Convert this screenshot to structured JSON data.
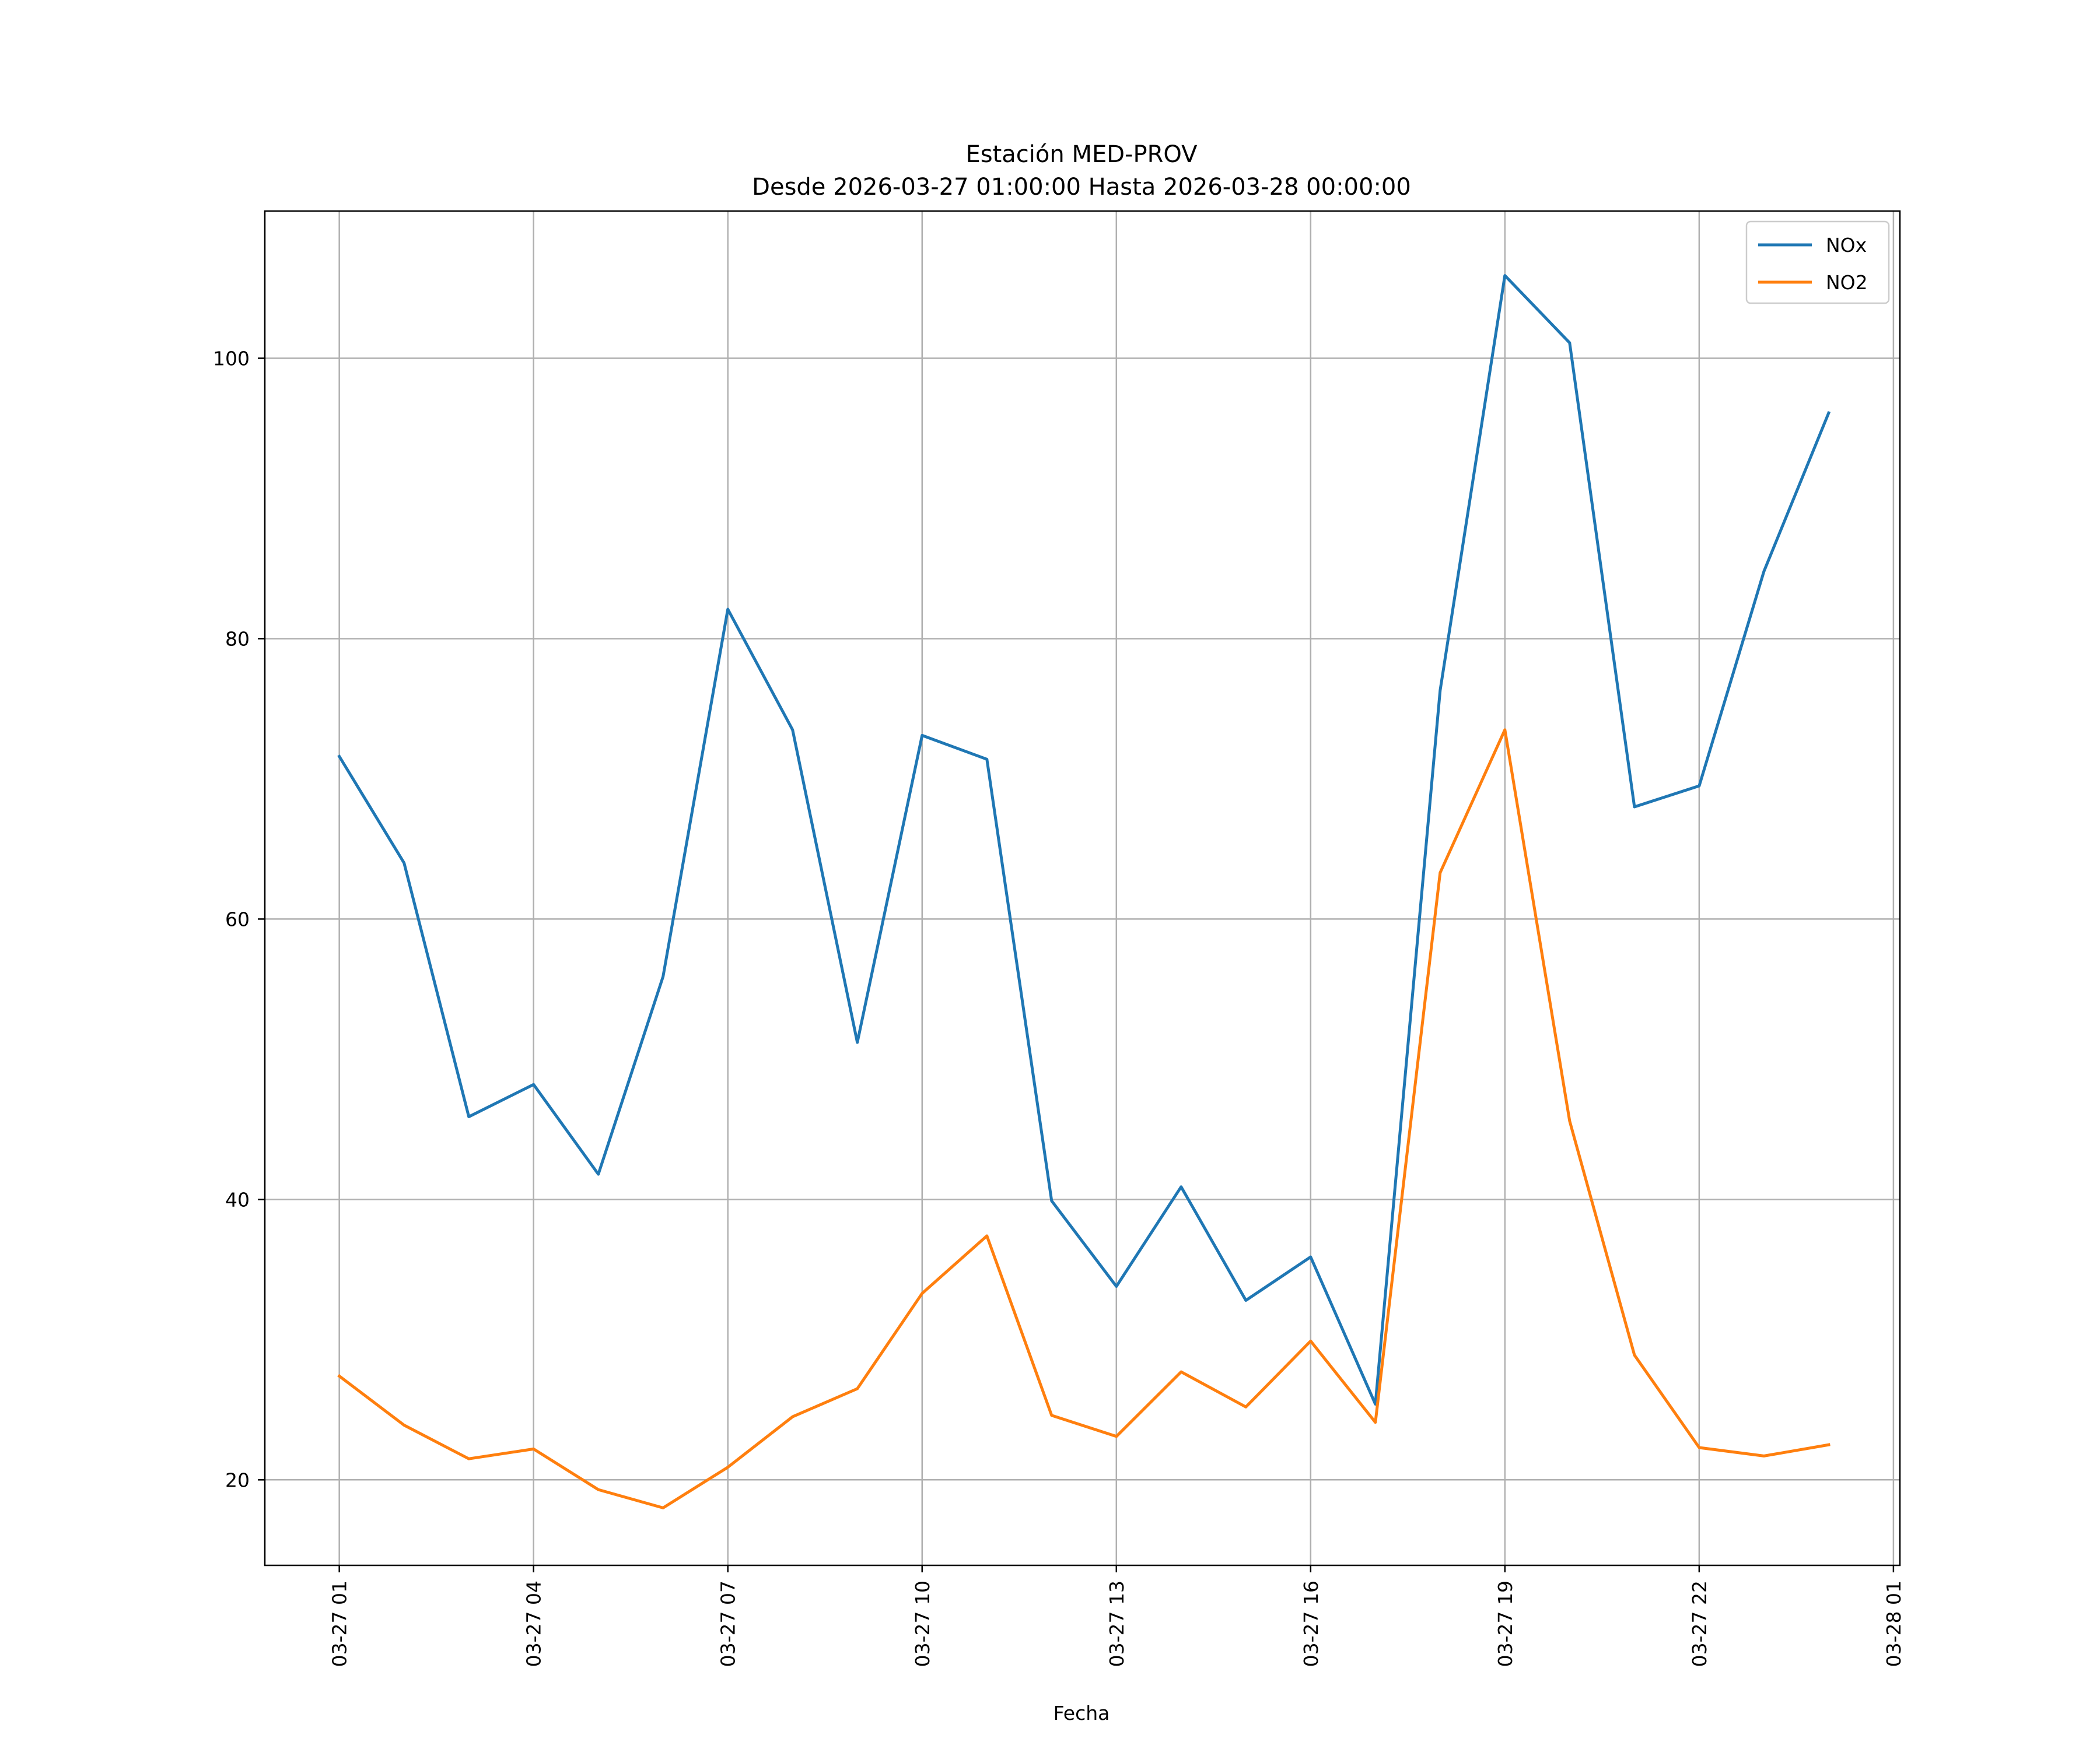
{
  "chart_data": {
    "type": "line",
    "title": "Estación MED-PROV",
    "subtitle": "Desde 2026-03-27 01:00:00 Hasta 2026-03-28 00:00:00",
    "xlabel": "Fecha",
    "ylabel": "",
    "x_hours": [
      1,
      2,
      3,
      4,
      5,
      6,
      7,
      8,
      9,
      10,
      11,
      12,
      13,
      14,
      15,
      16,
      17,
      18,
      19,
      20,
      21,
      22,
      23,
      24
    ],
    "x_ticks": [
      1,
      4,
      7,
      10,
      13,
      16,
      19,
      22,
      25
    ],
    "x_tick_labels": [
      "03-27 01",
      "03-27 04",
      "03-27 07",
      "03-27 10",
      "03-27 13",
      "03-27 16",
      "03-27 19",
      "03-27 22",
      "03-28 01"
    ],
    "xlim": [
      -0.15,
      25.1
    ],
    "y_ticks": [
      20,
      40,
      60,
      80,
      100
    ],
    "y_tick_labels": [
      "20",
      "40",
      "60",
      "80",
      "100"
    ],
    "ylim": [
      13.9,
      110.5
    ],
    "grid": true,
    "legend_position": "top-right",
    "series": [
      {
        "name": "NOx",
        "color": "#1f77b4",
        "values": [
          71.6,
          64.0,
          45.9,
          48.2,
          41.8,
          55.9,
          82.1,
          73.5,
          51.2,
          73.1,
          71.4,
          39.9,
          33.8,
          40.9,
          32.8,
          35.9,
          25.4,
          76.3,
          105.9,
          101.1,
          68.0,
          69.5,
          84.8,
          96.1
        ]
      },
      {
        "name": "NO2",
        "color": "#ff7f0e",
        "values": [
          27.4,
          23.9,
          21.5,
          22.2,
          19.3,
          18.0,
          20.9,
          24.5,
          26.5,
          33.3,
          37.4,
          24.6,
          23.1,
          27.7,
          25.2,
          29.9,
          24.1,
          63.3,
          73.5,
          45.6,
          28.9,
          22.3,
          21.7,
          22.5
        ]
      }
    ]
  }
}
